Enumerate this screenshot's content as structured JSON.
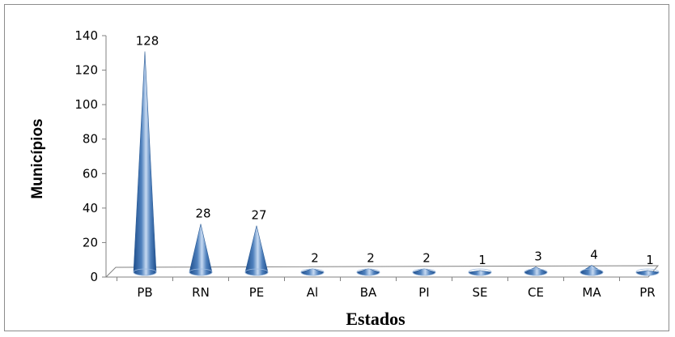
{
  "chart_data": {
    "type": "bar",
    "bar_shape": "cone-3d",
    "categories": [
      "PB",
      "RN",
      "PE",
      "Al",
      "BA",
      "PI",
      "SE",
      "CE",
      "MA",
      "PR"
    ],
    "values": [
      128,
      28,
      27,
      2,
      2,
      2,
      1,
      3,
      4,
      1
    ],
    "data_labels": [
      "128",
      "28",
      "27",
      "2",
      "2",
      "2",
      "1",
      "3",
      "4",
      "1"
    ],
    "xlabel": "Estados",
    "ylabel": "Municípios",
    "ylim": [
      0,
      140
    ],
    "yticks": [
      0,
      20,
      40,
      60,
      80,
      100,
      120,
      140
    ],
    "grid": false,
    "legend": "none",
    "colors": {
      "bar": "#4f81bd",
      "bar_dark": "#1f4e8c",
      "bar_light": "#c6d9f1",
      "floor": "#ffffff",
      "axis": "#808080"
    }
  }
}
